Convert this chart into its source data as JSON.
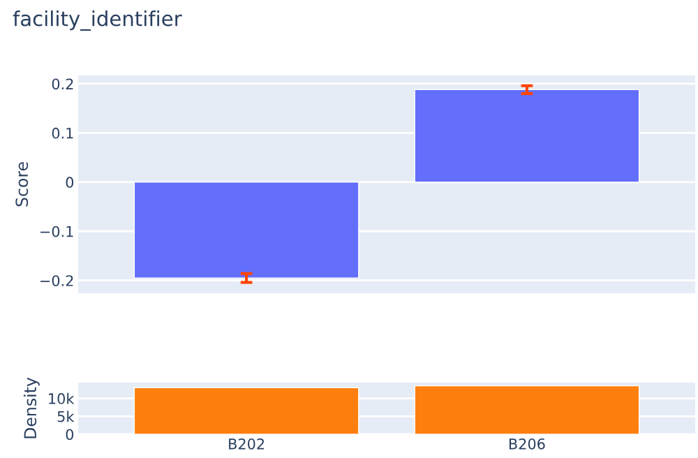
{
  "chart_data": [
    {
      "type": "bar",
      "title": "facility_identifier",
      "ylabel": "Score",
      "categories": [
        null,
        null
      ],
      "series": [
        {
          "color": "#636efa",
          "values": [
            -0.195,
            0.188
          ],
          "errors": [
            0.009,
            0.008
          ]
        }
      ],
      "ylim": [
        -0.226,
        0.217
      ],
      "yticks": [
        {
          "value": -0.2,
          "label": "−0.2"
        },
        {
          "value": -0.1,
          "label": "−0.1"
        },
        0,
        0.1,
        0.2
      ],
      "grid": "y",
      "tick_labels": "y"
    },
    {
      "type": "bar",
      "ylabel": "Density",
      "categories": [
        "B202",
        "B206"
      ],
      "series": [
        {
          "color": "#ff7f0e",
          "values": [
            13000,
            13500
          ]
        }
      ],
      "ylim": [
        0,
        14400
      ],
      "yticks": [
        0,
        {
          "value": 5000,
          "label": "5k"
        },
        {
          "value": 10000,
          "label": "10k"
        }
      ],
      "grid": "y"
    }
  ]
}
